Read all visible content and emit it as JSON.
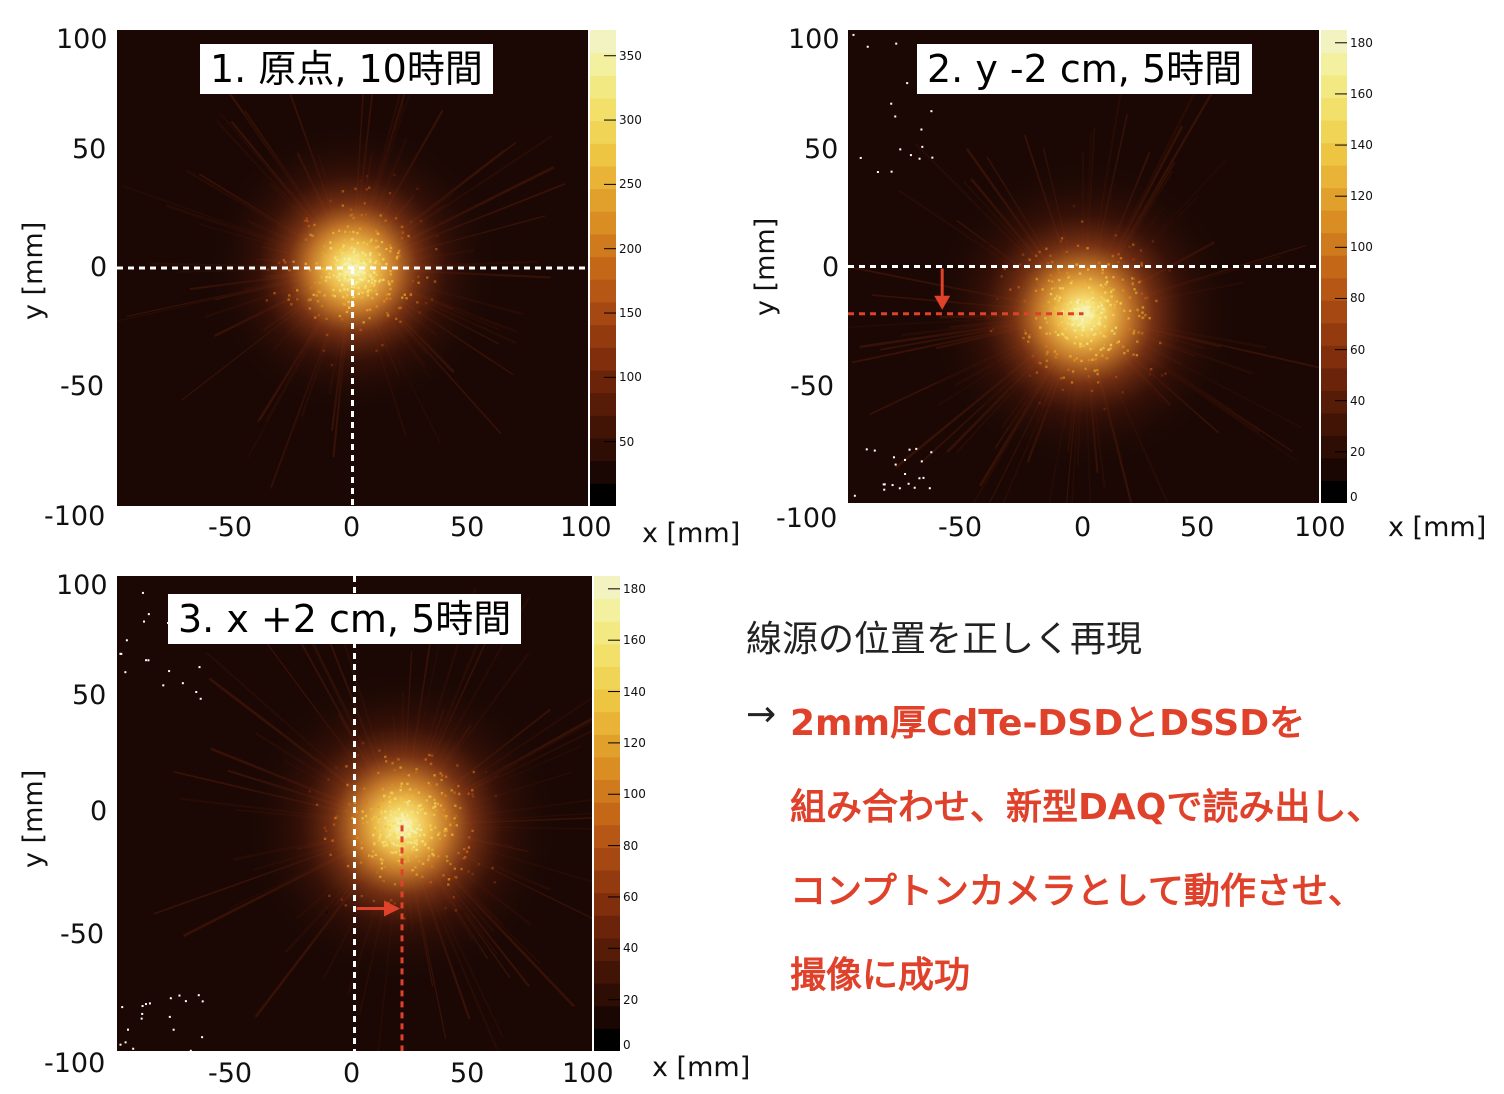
{
  "colors": {
    "background": "#1b0804",
    "accent_red": "#e0412a",
    "colormap": [
      "#000000",
      "#1a0602",
      "#2e0d04",
      "#421406",
      "#571c08",
      "#6b240a",
      "#802e0c",
      "#933a0f",
      "#a54812",
      "#b65715",
      "#c46818",
      "#cf7a1c",
      "#d98d22",
      "#e1a02b",
      "#e8b336",
      "#edc543",
      "#f0d455",
      "#f2e06a",
      "#f3e983",
      "#f3f0a0",
      "#f2f3c0"
    ]
  },
  "text": {
    "statement": "線源の位置を正しく再現",
    "arrow_prefix": "→",
    "red_line1": "2mm厚CdTe-DSDとDSSDを",
    "red_line2": "組み合わせ、新型DAQで読み出し、",
    "red_line3": "コンプトンカメラとして動作させ、",
    "red_line4": "撮像に成功"
  },
  "chart_data": [
    {
      "type": "heatmap",
      "title": "1. 原点, 10時間",
      "xlabel": "x [mm]",
      "ylabel": "y [mm]",
      "xlim": [
        -100,
        100
      ],
      "ylim": [
        -100,
        100
      ],
      "xticks": [
        "-50",
        "0",
        "50",
        "100"
      ],
      "yticks": [
        "100",
        "50",
        "0",
        "-50",
        "-100"
      ],
      "colorbar": {
        "min": 0,
        "max": 370,
        "ticks": [
          "350",
          "300",
          "250",
          "200",
          "150",
          "100",
          "50"
        ]
      },
      "source_center_mm": [
        0,
        0
      ],
      "source_spread_mm": 14,
      "peak_counts": 370,
      "guide_lines": {
        "horizontal_y": 0,
        "vertical_x": 0,
        "shift_arrow": null
      }
    },
    {
      "type": "heatmap",
      "title": "2. y -2 cm, 5時間",
      "xlabel": "x [mm]",
      "ylabel": "y [mm]",
      "xlim": [
        -100,
        100
      ],
      "ylim": [
        -100,
        100
      ],
      "xticks": [
        "-50",
        "0",
        "50",
        "100"
      ],
      "yticks": [
        "100",
        "50",
        "0",
        "-50",
        "-100"
      ],
      "colorbar": {
        "min": 0,
        "max": 185,
        "ticks": [
          "180",
          "160",
          "140",
          "120",
          "100",
          "80",
          "60",
          "40",
          "20",
          "0"
        ]
      },
      "source_center_mm": [
        0,
        -20
      ],
      "source_spread_mm": 15,
      "peak_counts": 185,
      "guide_lines": {
        "horizontal_y": 0,
        "shifted_horizontal_y": -20,
        "shift_arrow": "down"
      }
    },
    {
      "type": "heatmap",
      "title": "3. x +2 cm, 5時間",
      "xlabel": "x [mm]",
      "ylabel": "y [mm]",
      "xlim": [
        -100,
        100
      ],
      "ylim": [
        -100,
        100
      ],
      "xticks": [
        "-50",
        "0",
        "50",
        "100"
      ],
      "yticks": [
        "100",
        "50",
        "0",
        "-50",
        "-100"
      ],
      "colorbar": {
        "min": 0,
        "max": 185,
        "ticks": [
          "180",
          "160",
          "140",
          "120",
          "100",
          "80",
          "60",
          "40",
          "20",
          "0"
        ]
      },
      "source_center_mm": [
        20,
        -5
      ],
      "source_spread_mm": 15,
      "peak_counts": 185,
      "guide_lines": {
        "vertical_x": 0,
        "shifted_vertical_x": 20,
        "shift_arrow": "right"
      }
    }
  ]
}
